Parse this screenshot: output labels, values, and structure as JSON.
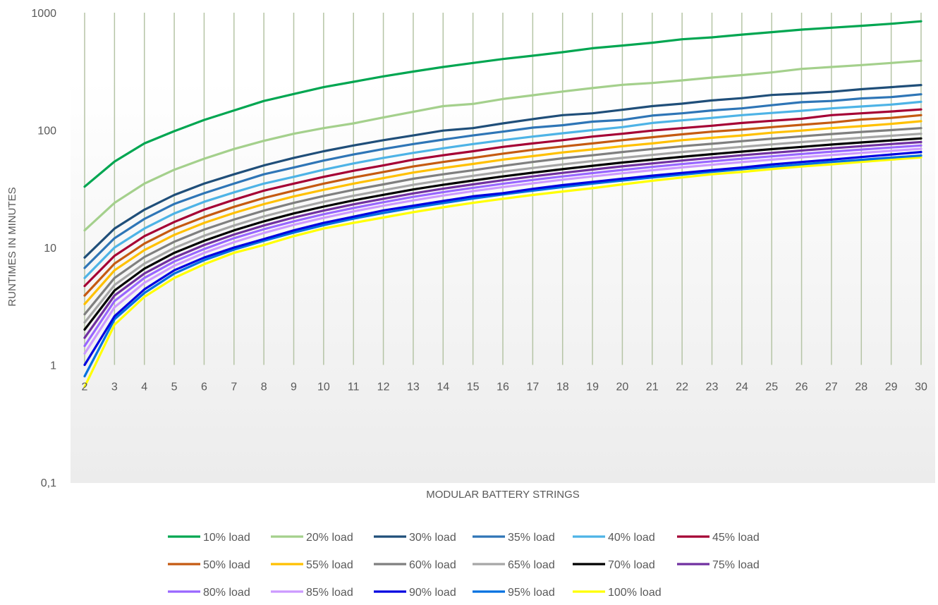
{
  "chart_data": {
    "type": "line",
    "title": "",
    "xlabel": "MODULAR BATTERY STRINGS",
    "ylabel": "RUNTIMES IN MINUTES",
    "y_scale": "log",
    "ylim": [
      0.1,
      1000
    ],
    "y_ticks": [
      {
        "value": 0.1,
        "label": "0,1"
      },
      {
        "value": 1,
        "label": "1"
      },
      {
        "value": 10,
        "label": "10"
      },
      {
        "value": 100,
        "label": "100"
      },
      {
        "value": 1000,
        "label": "1000"
      }
    ],
    "categories": [
      "2",
      "3",
      "4",
      "5",
      "6",
      "7",
      "8",
      "9",
      "10",
      "11",
      "12",
      "13",
      "14",
      "15",
      "16",
      "17",
      "18",
      "19",
      "20",
      "21",
      "22",
      "23",
      "24",
      "25",
      "26",
      "27",
      "28",
      "29",
      "30"
    ],
    "grid": "vertical gridlines at each category",
    "legend_position": "bottom",
    "series": [
      {
        "name": "10% load",
        "color": "#00a651",
        "values": [
          33,
          54,
          77,
          98,
          122,
          147,
          177,
          203,
          232,
          258,
          287,
          315,
          345,
          373,
          403,
          430,
          461,
          498,
          525,
          555,
          594,
          616,
          650,
          683,
          718,
          745,
          773,
          805,
          845
        ]
      },
      {
        "name": "20% load",
        "color": "#a4d08c",
        "values": [
          14,
          24,
          35,
          46,
          57,
          69,
          81,
          93,
          104,
          114,
          128,
          143,
          160,
          167,
          184,
          198,
          213,
          228,
          243,
          252,
          265,
          280,
          294,
          310,
          332,
          345,
          358,
          373,
          390
        ]
      },
      {
        "name": "30% load",
        "color": "#1f4e79",
        "values": [
          8.2,
          14.5,
          21,
          28,
          35,
          42,
          50,
          58,
          66,
          74,
          82,
          90,
          99,
          104,
          114,
          124,
          134,
          139,
          149,
          160,
          168,
          179,
          187,
          199,
          205,
          212,
          223,
          232,
          242
        ]
      },
      {
        "name": "35% load",
        "color": "#2e75b6",
        "values": [
          6.7,
          12,
          17.5,
          23.5,
          29,
          35,
          42,
          48,
          55,
          62,
          69,
          76,
          83,
          90,
          97,
          105,
          110,
          118,
          122,
          133,
          139,
          147,
          153,
          163,
          173,
          177,
          186,
          191,
          202
        ]
      },
      {
        "name": "40% load",
        "color": "#4db3e6",
        "values": [
          5.5,
          10,
          14.5,
          19.5,
          24.5,
          29.5,
          35,
          40,
          46,
          52,
          58,
          64,
          70,
          76,
          82,
          88,
          94,
          100,
          106,
          115,
          121,
          127,
          134,
          140,
          146,
          153,
          159,
          165,
          174
        ]
      },
      {
        "name": "45% load",
        "color": "#a50034",
        "values": [
          4.7,
          8.5,
          12.5,
          16.5,
          21,
          25.5,
          30.5,
          35,
          40,
          45,
          50,
          56,
          61,
          66,
          72,
          77,
          82,
          88,
          93,
          99,
          104,
          109,
          115,
          120,
          125,
          134,
          139,
          144,
          150
        ]
      },
      {
        "name": "50% load",
        "color": "#c55a11",
        "values": [
          3.9,
          7.3,
          10.8,
          14.5,
          18.2,
          22.2,
          26.4,
          30.5,
          35,
          39.5,
          44,
          49,
          53.5,
          58,
          63,
          68,
          72.5,
          77,
          82,
          87,
          92,
          97,
          101,
          106,
          111,
          116,
          123,
          127,
          134
        ]
      },
      {
        "name": "55% load",
        "color": "#ffc000",
        "values": [
          3.3,
          6.4,
          9.5,
          12.8,
          16.2,
          19.7,
          23.4,
          27.2,
          31,
          35,
          39,
          43.5,
          47.5,
          51.5,
          56,
          60,
          64.5,
          68.5,
          73,
          77,
          82,
          86,
          90,
          95,
          99,
          104,
          108,
          113,
          119
        ]
      },
      {
        "name": "60% load",
        "color": "#7f7f7f",
        "values": [
          2.7,
          5.5,
          8.3,
          11.2,
          14.2,
          17.3,
          20.6,
          24,
          27.5,
          31,
          34.5,
          38.5,
          42,
          45.5,
          49.5,
          53.5,
          57.5,
          61,
          65,
          69,
          73,
          76.5,
          80.5,
          84.5,
          88.5,
          92.5,
          96.5,
          100,
          104
        ]
      },
      {
        "name": "65% load",
        "color": "#a6a6a6",
        "values": [
          2.3,
          4.8,
          7.3,
          9.9,
          12.6,
          15.4,
          18.4,
          21.4,
          24.5,
          27.6,
          30.8,
          34.2,
          37.5,
          40.8,
          44.2,
          47.6,
          51,
          54.5,
          58,
          61.5,
          65,
          68.5,
          72,
          75.5,
          79,
          82.5,
          86,
          89.5,
          93
        ]
      },
      {
        "name": "70% load",
        "color": "#000000",
        "values": [
          2,
          4.3,
          6.6,
          9,
          11.4,
          14,
          16.7,
          19.5,
          22.3,
          25.2,
          28.1,
          31.2,
          34.2,
          37.2,
          40.3,
          43.4,
          46.5,
          49.7,
          52.9,
          56,
          59.2,
          62.4,
          65.6,
          68.8,
          72,
          75.3,
          78.5,
          81.7,
          85
        ]
      },
      {
        "name": "75% load",
        "color": "#7030a0",
        "values": [
          1.7,
          3.9,
          6,
          8.2,
          10.5,
          12.9,
          15.4,
          18,
          20.6,
          23.3,
          26,
          28.9,
          31.7,
          34.5,
          37.4,
          40.3,
          43.2,
          46.1,
          49.1,
          52,
          55,
          58,
          61,
          64,
          67,
          70,
          73,
          76,
          79
        ]
      },
      {
        "name": "80% load",
        "color": "#9966ff",
        "values": [
          1.45,
          3.5,
          5.5,
          7.6,
          9.7,
          12,
          14.3,
          16.7,
          19.2,
          21.7,
          24.3,
          27,
          29.6,
          32.2,
          34.9,
          37.6,
          40.3,
          43,
          45.8,
          48.6,
          51.4,
          54.2,
          57,
          59.8,
          62.6,
          65.5,
          68.3,
          71.1,
          74
        ]
      },
      {
        "name": "85% load",
        "color": "#cc99ff",
        "values": [
          1.25,
          3.1,
          5,
          7,
          9,
          11.1,
          13.3,
          15.6,
          17.9,
          20.3,
          22.7,
          25.2,
          27.7,
          30.2,
          32.7,
          35.2,
          37.8,
          40.3,
          42.9,
          45.5,
          48.1,
          50.7,
          53.4,
          56,
          58.6,
          61.3,
          64,
          66.6,
          69.3
        ]
      },
      {
        "name": "90% load",
        "color": "#0000e0",
        "values": [
          1,
          2.6,
          4.4,
          6.4,
          8.2,
          10,
          11.8,
          14,
          16.2,
          18.3,
          20.7,
          22.7,
          24.9,
          27.3,
          29,
          31.6,
          34,
          36.2,
          38.5,
          40.9,
          43.2,
          45.6,
          48,
          51,
          53.5,
          56,
          59,
          62,
          65
        ]
      },
      {
        "name": "95% load",
        "color": "#0070e0",
        "values": [
          0.8,
          2.45,
          4.1,
          6,
          7.8,
          9.6,
          11.4,
          13.4,
          15.5,
          17.6,
          19.7,
          21.8,
          23.9,
          26.1,
          28.3,
          30.5,
          32.7,
          35,
          37.2,
          39.5,
          41.8,
          44.1,
          46.4,
          48.8,
          51.1,
          53.5,
          55.9,
          58.3,
          60.7
        ]
      },
      {
        "name": "100% load",
        "color": "#ffff00",
        "values": [
          0.65,
          2.2,
          3.8,
          5.5,
          7.2,
          9,
          10.5,
          12.5,
          14.5,
          16.2,
          18,
          20,
          22,
          24,
          26,
          28,
          30,
          32,
          34.5,
          37,
          39.5,
          42,
          44,
          46.5,
          49,
          51,
          53.5,
          56,
          58.5
        ]
      }
    ]
  }
}
